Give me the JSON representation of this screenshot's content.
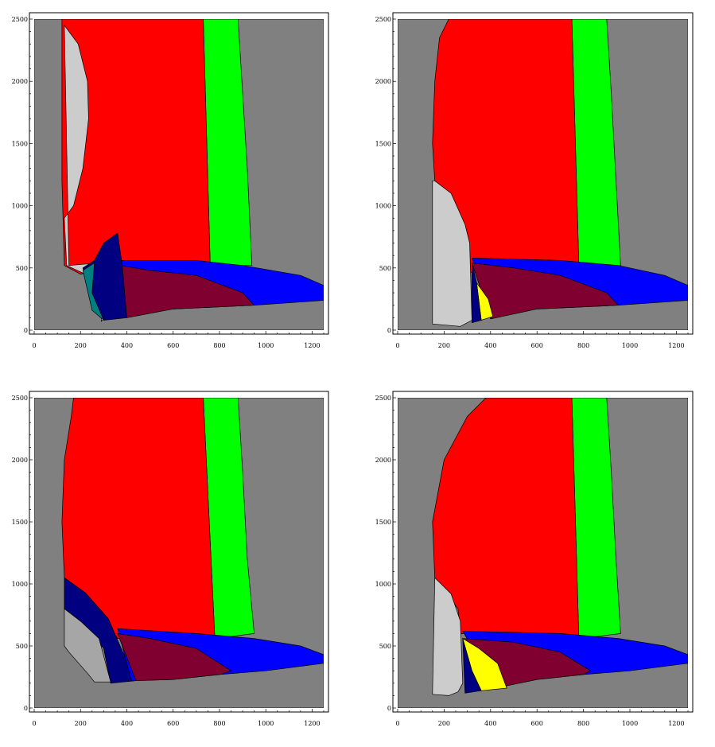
{
  "chart_data": [
    {
      "type": "area",
      "xlim": [
        0,
        1250
      ],
      "ylim": [
        0,
        2500
      ],
      "x_ticks": [
        "0",
        "200",
        "400",
        "600",
        "800",
        "1000",
        "1200"
      ],
      "y_ticks": [
        "0",
        "500",
        "1000",
        "1500",
        "2000",
        "2500"
      ],
      "regions": [
        {
          "color": "#808080",
          "points": [
            [
              0,
              0
            ],
            [
              1250,
              0
            ],
            [
              1250,
              2500
            ],
            [
              0,
              2500
            ]
          ]
        },
        {
          "color": "#00ff00",
          "points": [
            [
              730,
              2500
            ],
            [
              880,
              2500
            ],
            [
              900,
              1900
            ],
            [
              920,
              1300
            ],
            [
              940,
              520
            ],
            [
              760,
              520
            ]
          ]
        },
        {
          "color": "#ff0000",
          "points": [
            [
              120,
              2500
            ],
            [
              730,
              2500
            ],
            [
              760,
              520
            ],
            [
              380,
              520
            ],
            [
              200,
              450
            ],
            [
              130,
              520
            ],
            [
              120,
              1200
            ]
          ]
        },
        {
          "color": "#cccccc",
          "points": [
            [
              130,
              2450
            ],
            [
              190,
              2300
            ],
            [
              230,
              2000
            ],
            [
              235,
              1700
            ],
            [
              210,
              1300
            ],
            [
              170,
              1000
            ],
            [
              130,
              900
            ],
            [
              140,
              520
            ],
            [
              220,
              450
            ],
            [
              300,
              470
            ],
            [
              340,
              700
            ],
            [
              280,
              540
            ],
            [
              150,
              520
            ]
          ]
        },
        {
          "color": "#0000ff",
          "points": [
            [
              370,
              560
            ],
            [
              700,
              560
            ],
            [
              900,
              520
            ],
            [
              1150,
              440
            ],
            [
              1250,
              360
            ],
            [
              1250,
              240
            ],
            [
              950,
              200
            ],
            [
              600,
              170
            ],
            [
              390,
              210
            ]
          ]
        },
        {
          "color": "#800030",
          "points": [
            [
              370,
              520
            ],
            [
              500,
              480
            ],
            [
              700,
              440
            ],
            [
              900,
              300
            ],
            [
              950,
              200
            ],
            [
              600,
              170
            ],
            [
              400,
              100
            ]
          ]
        },
        {
          "color": "#000080",
          "points": [
            [
              210,
              500
            ],
            [
              260,
              560
            ],
            [
              300,
              700
            ],
            [
              360,
              780
            ],
            [
              380,
              520
            ],
            [
              400,
              100
            ],
            [
              300,
              80
            ],
            [
              250,
              200
            ]
          ]
        },
        {
          "color": "#008080",
          "points": [
            [
              210,
              480
            ],
            [
              260,
              540
            ],
            [
              250,
              300
            ],
            [
              300,
              80
            ],
            [
              250,
              160
            ]
          ]
        },
        {
          "color": "#ffffff",
          "points": [
            [
              290,
              90
            ],
            [
              300,
              100
            ],
            [
              290,
              70
            ]
          ]
        }
      ]
    },
    {
      "type": "area",
      "xlim": [
        0,
        1250
      ],
      "ylim": [
        0,
        2500
      ],
      "x_ticks": [
        "0",
        "200",
        "400",
        "600",
        "800",
        "1000",
        "1200"
      ],
      "y_ticks": [
        "0",
        "500",
        "1000",
        "1500",
        "2000",
        "2500"
      ],
      "regions": [
        {
          "color": "#808080",
          "points": [
            [
              0,
              0
            ],
            [
              1250,
              0
            ],
            [
              1250,
              2500
            ],
            [
              0,
              2500
            ]
          ]
        },
        {
          "color": "#00ff00",
          "points": [
            [
              750,
              2500
            ],
            [
              900,
              2500
            ],
            [
              920,
              1900
            ],
            [
              940,
              1200
            ],
            [
              960,
              520
            ],
            [
              780,
              520
            ]
          ]
        },
        {
          "color": "#ff0000",
          "points": [
            [
              220,
              2500
            ],
            [
              750,
              2500
            ],
            [
              780,
              520
            ],
            [
              380,
              520
            ],
            [
              300,
              450
            ],
            [
              160,
              1200
            ],
            [
              150,
              1500
            ],
            [
              160,
              2000
            ],
            [
              180,
              2350
            ]
          ]
        },
        {
          "color": "#cccccc",
          "points": [
            [
              160,
              1200
            ],
            [
              230,
              1100
            ],
            [
              290,
              850
            ],
            [
              310,
              700
            ],
            [
              320,
              80
            ],
            [
              270,
              30
            ],
            [
              150,
              50
            ],
            [
              150,
              1200
            ]
          ]
        },
        {
          "color": "#0000ff",
          "points": [
            [
              320,
              580
            ],
            [
              700,
              560
            ],
            [
              950,
              520
            ],
            [
              1150,
              440
            ],
            [
              1250,
              360
            ],
            [
              1250,
              240
            ],
            [
              950,
              200
            ],
            [
              600,
              170
            ],
            [
              390,
              210
            ]
          ]
        },
        {
          "color": "#800030",
          "points": [
            [
              320,
              540
            ],
            [
              500,
              500
            ],
            [
              700,
              440
            ],
            [
              900,
              300
            ],
            [
              950,
              200
            ],
            [
              600,
              170
            ],
            [
              400,
              90
            ]
          ]
        },
        {
          "color": "#ffff00",
          "points": [
            [
              340,
              380
            ],
            [
              390,
              250
            ],
            [
              410,
              110
            ],
            [
              360,
              80
            ]
          ]
        },
        {
          "color": "#000080",
          "points": [
            [
              320,
              540
            ],
            [
              340,
              380
            ],
            [
              360,
              80
            ],
            [
              320,
              60
            ]
          ]
        }
      ]
    },
    {
      "type": "area",
      "xlim": [
        0,
        1250
      ],
      "ylim": [
        0,
        2500
      ],
      "x_ticks": [
        "0",
        "200",
        "400",
        "600",
        "800",
        "1000",
        "1200"
      ],
      "y_ticks": [
        "0",
        "500",
        "1000",
        "1500",
        "2000",
        "2500"
      ],
      "regions": [
        {
          "color": "#808080",
          "points": [
            [
              0,
              0
            ],
            [
              1250,
              0
            ],
            [
              1250,
              2500
            ],
            [
              0,
              2500
            ]
          ]
        },
        {
          "color": "#00ff00",
          "points": [
            [
              730,
              2500
            ],
            [
              880,
              2500
            ],
            [
              900,
              1900
            ],
            [
              920,
              1200
            ],
            [
              950,
              600
            ],
            [
              780,
              560
            ]
          ]
        },
        {
          "color": "#ff0000",
          "points": [
            [
              170,
              2500
            ],
            [
              730,
              2500
            ],
            [
              780,
              560
            ],
            [
              360,
              560
            ],
            [
              280,
              800
            ],
            [
              130,
              1050
            ],
            [
              120,
              1500
            ],
            [
              130,
              2000
            ],
            [
              160,
              2350
            ]
          ]
        },
        {
          "color": "#000080",
          "points": [
            [
              130,
              1050
            ],
            [
              220,
              930
            ],
            [
              320,
              720
            ],
            [
              380,
              460
            ],
            [
              440,
              220
            ],
            [
              330,
              200
            ],
            [
              300,
              480
            ],
            [
              200,
              700
            ],
            [
              130,
              800
            ]
          ]
        },
        {
          "color": "#a6a6a6",
          "points": [
            [
              130,
              800
            ],
            [
              200,
              700
            ],
            [
              280,
              560
            ],
            [
              330,
              210
            ],
            [
              260,
              210
            ],
            [
              230,
              280
            ],
            [
              150,
              450
            ],
            [
              130,
              500
            ]
          ]
        },
        {
          "color": "#0000ff",
          "points": [
            [
              360,
              640
            ],
            [
              700,
              600
            ],
            [
              950,
              560
            ],
            [
              1150,
              500
            ],
            [
              1250,
              430
            ],
            [
              1250,
              360
            ],
            [
              1000,
              300
            ],
            [
              800,
              270
            ],
            [
              600,
              230
            ],
            [
              420,
              220
            ]
          ]
        },
        {
          "color": "#800030",
          "points": [
            [
              360,
              600
            ],
            [
              500,
              560
            ],
            [
              700,
              480
            ],
            [
              850,
              300
            ],
            [
              800,
              270
            ],
            [
              600,
              230
            ],
            [
              440,
              220
            ]
          ]
        }
      ]
    },
    {
      "type": "area",
      "xlim": [
        0,
        1250
      ],
      "ylim": [
        0,
        2500
      ],
      "x_ticks": [
        "0",
        "200",
        "400",
        "600",
        "800",
        "1000",
        "1200"
      ],
      "y_ticks": [
        "0",
        "500",
        "1000",
        "1500",
        "2000",
        "2500"
      ],
      "regions": [
        {
          "color": "#808080",
          "points": [
            [
              0,
              0
            ],
            [
              1250,
              0
            ],
            [
              1250,
              2500
            ],
            [
              0,
              2500
            ]
          ]
        },
        {
          "color": "#00ff00",
          "points": [
            [
              750,
              2500
            ],
            [
              900,
              2500
            ],
            [
              920,
              1900
            ],
            [
              940,
              1200
            ],
            [
              960,
              600
            ],
            [
              780,
              560
            ]
          ]
        },
        {
          "color": "#ff0000",
          "points": [
            [
              380,
              2500
            ],
            [
              750,
              2500
            ],
            [
              780,
              560
            ],
            [
              270,
              600
            ],
            [
              260,
              800
            ],
            [
              160,
              1050
            ],
            [
              150,
              1500
            ],
            [
              200,
              2000
            ],
            [
              300,
              2350
            ]
          ]
        },
        {
          "color": "#cccccc",
          "points": [
            [
              160,
              1050
            ],
            [
              230,
              920
            ],
            [
              270,
              700
            ],
            [
              280,
              200
            ],
            [
              260,
              130
            ],
            [
              220,
              100
            ],
            [
              150,
              110
            ]
          ]
        },
        {
          "color": "#0000ff",
          "points": [
            [
              280,
              620
            ],
            [
              700,
              600
            ],
            [
              950,
              560
            ],
            [
              1150,
              500
            ],
            [
              1250,
              430
            ],
            [
              1250,
              360
            ],
            [
              1000,
              300
            ],
            [
              800,
              270
            ],
            [
              600,
              230
            ],
            [
              420,
              160
            ]
          ]
        },
        {
          "color": "#800030",
          "points": [
            [
              280,
              560
            ],
            [
              500,
              530
            ],
            [
              700,
              450
            ],
            [
              830,
              300
            ],
            [
              800,
              270
            ],
            [
              600,
              230
            ],
            [
              420,
              160
            ]
          ]
        },
        {
          "color": "#ffff00",
          "points": [
            [
              280,
              560
            ],
            [
              350,
              480
            ],
            [
              430,
              360
            ],
            [
              470,
              160
            ],
            [
              360,
              140
            ],
            [
              320,
              300
            ]
          ]
        },
        {
          "color": "#000080",
          "points": [
            [
              280,
              560
            ],
            [
              320,
              300
            ],
            [
              360,
              140
            ],
            [
              290,
              120
            ]
          ]
        }
      ]
    }
  ]
}
